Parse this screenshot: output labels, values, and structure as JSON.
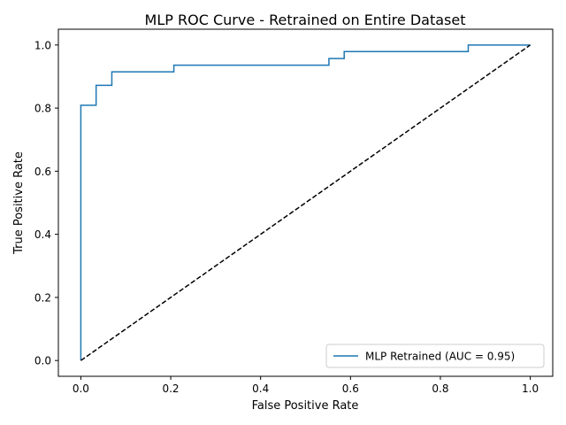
{
  "chart_data": {
    "type": "line",
    "title": "MLP ROC Curve - Retrained on Entire Dataset",
    "xlabel": "False Positive Rate",
    "ylabel": "True Positive Rate",
    "xlim": [
      -0.05,
      1.05
    ],
    "ylim": [
      -0.05,
      1.05
    ],
    "xticks": [
      0.0,
      0.2,
      0.4,
      0.6,
      0.8,
      1.0
    ],
    "yticks": [
      0.0,
      0.2,
      0.4,
      0.6,
      0.8,
      1.0
    ],
    "xtick_labels": [
      "0.0",
      "0.2",
      "0.4",
      "0.6",
      "0.8",
      "1.0"
    ],
    "ytick_labels": [
      "0.0",
      "0.2",
      "0.4",
      "0.6",
      "0.8",
      "1.0"
    ],
    "grid": false,
    "legend_position": "lower-right",
    "series": [
      {
        "name": "MLP Retrained (AUC = 0.95)",
        "color": "#1f77b4",
        "style": "solid",
        "step": true,
        "points": [
          [
            0.0,
            0.0
          ],
          [
            0.0,
            0.809
          ],
          [
            0.034,
            0.809
          ],
          [
            0.034,
            0.872
          ],
          [
            0.069,
            0.872
          ],
          [
            0.069,
            0.915
          ],
          [
            0.207,
            0.915
          ],
          [
            0.207,
            0.936
          ],
          [
            0.552,
            0.936
          ],
          [
            0.552,
            0.957
          ],
          [
            0.586,
            0.957
          ],
          [
            0.586,
            0.979
          ],
          [
            0.862,
            0.979
          ],
          [
            0.862,
            1.0
          ],
          [
            1.0,
            1.0
          ]
        ]
      },
      {
        "color": "#000000",
        "style": "dashed",
        "points": [
          [
            0.0,
            0.0
          ],
          [
            1.0,
            1.0
          ]
        ]
      }
    ]
  }
}
